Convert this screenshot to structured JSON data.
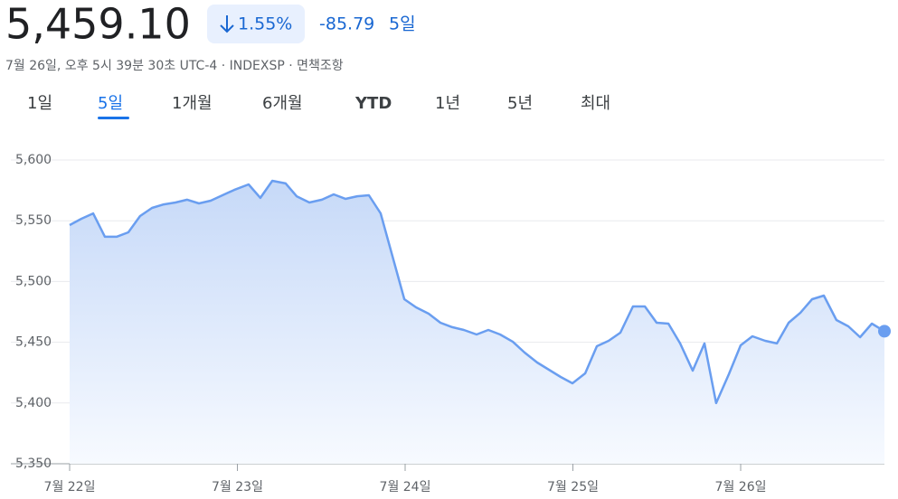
{
  "header": {
    "price": "5,459.10",
    "change_percent": "1.55%",
    "change": "-85.79",
    "period": "5일",
    "subtitle": "7월 26일, 오후 5시 39분 30초 UTC-4 · INDEXSP · 면책조항"
  },
  "tabs": [
    "1일",
    "5일",
    "1개월",
    "6개월",
    "YTD",
    "1년",
    "5년",
    "최대"
  ],
  "chart_data": {
    "type": "area",
    "color": "#6a9ef0",
    "grid": true,
    "x": [
      0,
      0.07,
      0.14,
      0.21,
      0.28,
      0.35,
      0.42,
      0.491,
      0.561,
      0.631,
      0.701,
      0.771,
      0.841,
      0.911,
      0.981,
      1.067,
      1.137,
      1.208,
      1.288,
      1.353,
      1.429,
      1.504,
      1.574,
      1.644,
      1.714,
      1.784,
      1.854,
      1.995,
      2.065,
      2.14,
      2.21,
      2.28,
      2.35,
      2.426,
      2.496,
      2.566,
      2.642,
      2.712,
      2.787,
      2.857,
      2.927,
      2.997,
      3.073,
      3.143,
      3.213,
      3.283,
      3.358,
      3.429,
      3.499,
      3.569,
      3.639,
      3.714,
      3.784,
      3.854,
      3.93,
      4.0,
      4.07,
      4.146,
      4.216,
      4.286,
      4.356,
      4.426,
      4.496,
      4.571,
      4.642,
      4.712,
      4.782,
      4.857
    ],
    "values": [
      5546.4,
      5551.6,
      5556,
      5536.8,
      5536.8,
      5540.5,
      5553.9,
      5560.6,
      5563.5,
      5565,
      5567.3,
      5564.3,
      5566.5,
      5571,
      5575.4,
      5579.9,
      5568.8,
      5582.9,
      5580.7,
      5570.2,
      5565,
      5567.3,
      5571.7,
      5568,
      5570.2,
      5571,
      5556.1,
      5485.4,
      5478.7,
      5473.5,
      5466.1,
      5462.4,
      5460.1,
      5456.4,
      5460.1,
      5456.4,
      5450.4,
      5441.5,
      5433.3,
      5427.4,
      5421.4,
      5416.2,
      5424.4,
      5446.7,
      5451.2,
      5457.9,
      5479.5,
      5479.5,
      5466.1,
      5465.3,
      5449,
      5426.6,
      5449,
      5399.9,
      5423.7,
      5447.5,
      5454.9,
      5451.2,
      5449,
      5466.1,
      5474.3,
      5485.4,
      5488.4,
      5468.3,
      5463.1,
      5454.2,
      5465.3,
      5459.1
    ],
    "xlim": [
      0,
      4.857
    ],
    "xticks": [
      {
        "value": 0,
        "label": "7월 22일"
      },
      {
        "value": 1,
        "label": "7월 23일"
      },
      {
        "value": 2,
        "label": "7월 24일"
      },
      {
        "value": 3,
        "label": "7월 25일"
      },
      {
        "value": 4,
        "label": "7월 26일"
      }
    ],
    "ylim": [
      5350,
      5600
    ],
    "yticks": [
      {
        "value": 5350,
        "label": "5,350"
      },
      {
        "value": 5400,
        "label": "5,400"
      },
      {
        "value": 5450,
        "label": "5,450"
      },
      {
        "value": 5500,
        "label": "5,500"
      },
      {
        "value": 5550,
        "label": "5,550"
      },
      {
        "value": 5600,
        "label": "5,600"
      }
    ]
  }
}
